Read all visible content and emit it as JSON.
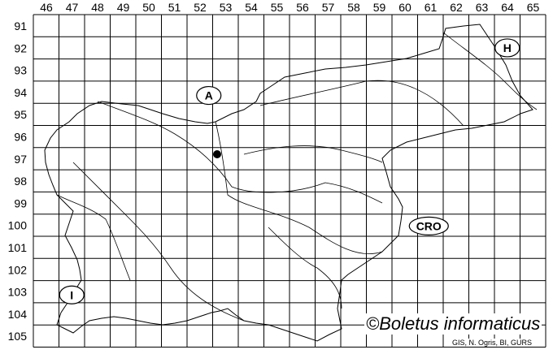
{
  "map": {
    "columns": [
      "46",
      "47",
      "48",
      "49",
      "50",
      "51",
      "52",
      "53",
      "54",
      "55",
      "56",
      "57",
      "58",
      "59",
      "60",
      "61",
      "62",
      "63",
      "64",
      "65"
    ],
    "rows": [
      "91",
      "92",
      "93",
      "94",
      "95",
      "96",
      "97",
      "98",
      "99",
      "100",
      "101",
      "102",
      "103",
      "104",
      "105"
    ],
    "country_labels": [
      {
        "text": "A",
        "cell": "52/94"
      },
      {
        "text": "H",
        "cell": "64/92"
      },
      {
        "text": "CRO",
        "cell": "61/100"
      },
      {
        "text": "I",
        "cell": "47/103"
      }
    ],
    "records": [
      {
        "cell": "52/97"
      }
    ],
    "colors": {
      "grid": "#000000",
      "point": "#000000",
      "background": "#ffffff"
    }
  },
  "watermark": "©Boletus informaticus",
  "credit": "GIS, N. Ogris, BI, GURS"
}
